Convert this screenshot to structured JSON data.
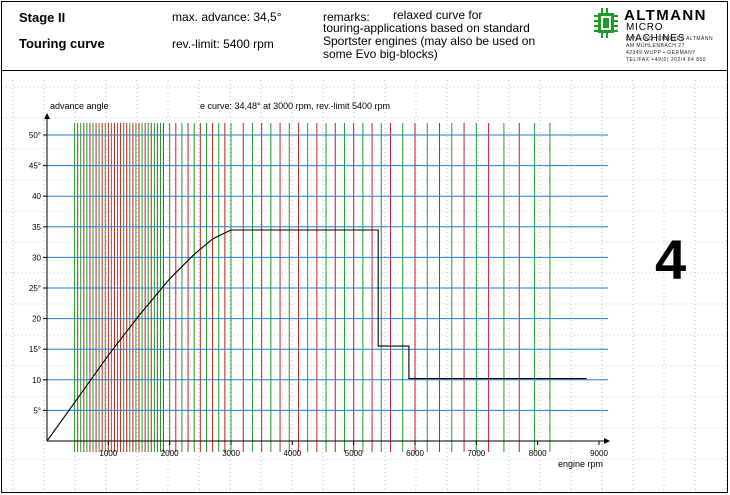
{
  "header": {
    "stage": "Stage II",
    "curve_name": "Touring curve",
    "max_advance": "max. advance: 34,5°",
    "rev_limit": "rev.-limit:  5400 rpm",
    "remarks_label": "remarks:",
    "remarks_lines": [
      "relaxed curve for",
      "touring-applications based on standard",
      "Sportster engines (may also be used on",
      "some Evo big-blocks)"
    ]
  },
  "logo": {
    "name": "ALTMANN",
    "subtitle": "MICRO MACHINES",
    "address_lines": [
      "DIPL.-ING. CHARLES ALTMANN",
      "AM MÜHLENBACH 27",
      "42349 WUPP • GERMANY",
      "TEL/FAX +49(0) 202/4 64 850"
    ]
  },
  "page_number": "4",
  "colors": {
    "blue": "#1e7fd6",
    "red": "#c81e1e",
    "green": "#1e9a28",
    "ink": "#000000"
  },
  "chart_data": {
    "type": "line",
    "title": "e curve: 34,48° at 3000 rpm, rev.-limit 5400 rpm",
    "xlabel": "engine rpm",
    "ylabel": "advance angle",
    "xlim": [
      0,
      9000
    ],
    "ylim": [
      0,
      50
    ],
    "x_ticks": [
      1000,
      2000,
      3000,
      4000,
      5000,
      6000,
      7000,
      8000,
      9000
    ],
    "x_tick_labels": [
      "1000",
      "2000",
      "3000",
      "4000",
      "5000",
      "6000",
      "7000",
      "8000",
      "9000"
    ],
    "y_ticks": [
      5,
      10,
      15,
      20,
      25,
      30,
      35,
      40,
      45,
      50
    ],
    "y_tick_labels": [
      "5°",
      "10",
      "15°",
      "20",
      "25°",
      "30",
      "35",
      "40",
      "45°",
      "50°"
    ],
    "series": [
      {
        "x": [
          0,
          500,
          1000,
          1500,
          2000,
          2400,
          2700,
          2900,
          3000,
          5400,
          5400,
          5900,
          5900,
          8800
        ],
        "y": [
          0,
          7,
          14,
          20.5,
          26.5,
          30.5,
          33,
          34,
          34.48,
          34.48,
          15.5,
          15.5,
          10.2,
          10.2
        ]
      }
    ],
    "rpm_grid_lines": {
      "red": [
        500,
        600,
        700,
        800,
        900,
        1000,
        1100,
        1200,
        1300,
        1400,
        1500,
        1600,
        1700,
        1800,
        1900,
        2100,
        2300,
        2500,
        2700,
        2900,
        3200,
        3500,
        3800,
        4100,
        4400,
        4700,
        5000,
        5300,
        5600,
        6000,
        6400,
        6800,
        7200,
        7700
      ],
      "green": [
        450,
        550,
        650,
        750,
        850,
        950,
        1050,
        1150,
        1250,
        1350,
        1450,
        1550,
        1650,
        1750,
        1850,
        2000,
        2200,
        2400,
        2600,
        2800,
        3000,
        3350,
        3650,
        3950,
        4250,
        4550,
        4850,
        5150,
        5450,
        5800,
        6200,
        6600,
        7000,
        7450,
        7950,
        8200
      ]
    },
    "grid": true
  }
}
